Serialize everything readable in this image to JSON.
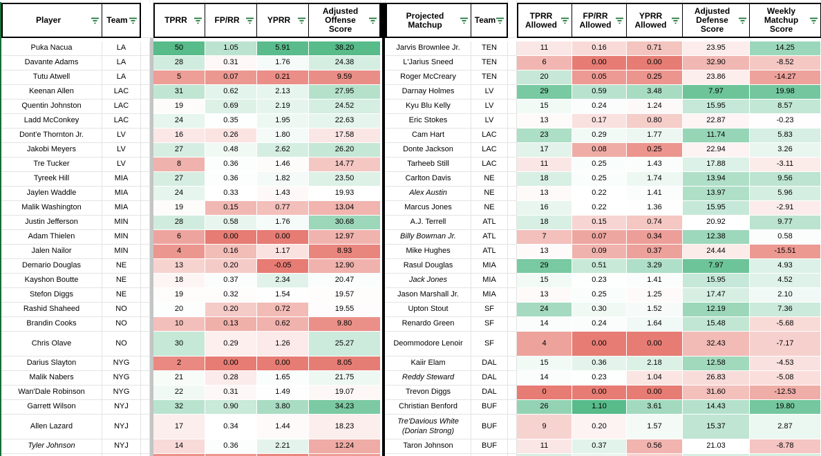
{
  "colors": {
    "scale_green": "#57bb8a",
    "scale_red": "#e67c73",
    "scale_white": "#ffffff",
    "header_border": "#000000",
    "gridline": "#e2e3e3",
    "freeze_bar": "#c3c4c4",
    "table_divider": "#000000",
    "filter_icon_green": "#137333",
    "sheet_edge_green": "#156f3b"
  },
  "left_headers": {
    "player": "Player",
    "team": "Team",
    "tprr": "TPRR",
    "fprr": "FP/RR",
    "yprr": "YPRR",
    "aos": "Adjusted Offense Score"
  },
  "right_headers": {
    "matchup": "Projected Matchup",
    "team": "Team",
    "tprr": "TPRR Allowed",
    "fprr": "FP/RR Allowed",
    "yprr": "YPRR Allowed",
    "ads": "Adjusted Defense Score",
    "wms": "Weekly Matchup Score"
  },
  "color_scales": {
    "l_tprr": {
      "min": 0,
      "mid": 19.5,
      "max": 50,
      "reverse": false
    },
    "l_fprr": {
      "min": 0,
      "mid": 0.33,
      "max": 2.1,
      "reverse": false
    },
    "l_yprr": {
      "min": 0,
      "mid": 1.5,
      "max": 6.0,
      "reverse": false
    },
    "l_aos": {
      "min": 8,
      "mid": 19.8,
      "max": 38.2,
      "reverse": false
    },
    "r_tprr": {
      "min": 0,
      "mid": 13.5,
      "max": 33,
      "reverse": false
    },
    "r_fprr": {
      "min": 0,
      "mid": 0.22,
      "max": 1.1,
      "reverse": false
    },
    "r_yprr": {
      "min": 0,
      "mid": 1.3,
      "max": 5.5,
      "reverse": false
    },
    "r_ads": {
      "min": 6,
      "mid": 21,
      "max": 43,
      "reverse": true
    },
    "r_wms": {
      "min": -20,
      "mid": 0,
      "max": 24,
      "reverse": false
    }
  },
  "rows": [
    {
      "tall": false,
      "left": {
        "player": "Puka Nacua",
        "team": "LA",
        "italic": false,
        "tprr": "50",
        "fprr": "1.05",
        "yprr": "5.91",
        "aos": "38.20"
      },
      "right": {
        "player": "Jarvis Brownlee Jr.",
        "team": "TEN",
        "italic": false,
        "tprr": "11",
        "fprr": "0.16",
        "yprr": "0.71",
        "ads": "23.95",
        "wms": "14.25"
      }
    },
    {
      "tall": false,
      "left": {
        "player": "Davante Adams",
        "team": "LA",
        "italic": false,
        "tprr": "28",
        "fprr": "0.31",
        "yprr": "1.76",
        "aos": "24.38"
      },
      "right": {
        "player": "L'Jarius Sneed",
        "team": "TEN",
        "italic": false,
        "tprr": "6",
        "fprr": "0.00",
        "yprr": "0.00",
        "ads": "32.90",
        "wms": "-8.52"
      }
    },
    {
      "tall": false,
      "left": {
        "player": "Tutu Atwell",
        "team": "LA",
        "italic": false,
        "tprr": "5",
        "fprr": "0.07",
        "yprr": "0.21",
        "aos": "9.59"
      },
      "right": {
        "player": "Roger McCreary",
        "team": "TEN",
        "italic": false,
        "tprr": "20",
        "fprr": "0.05",
        "yprr": "0.25",
        "ads": "23.86",
        "wms": "-14.27"
      }
    },
    {
      "tall": false,
      "left": {
        "player": "Keenan Allen",
        "team": "LAC",
        "italic": false,
        "tprr": "31",
        "fprr": "0.62",
        "yprr": "2.13",
        "aos": "27.95"
      },
      "right": {
        "player": "Darnay Holmes",
        "team": "LV",
        "italic": false,
        "tprr": "29",
        "fprr": "0.59",
        "yprr": "3.48",
        "ads": "7.97",
        "wms": "19.98"
      }
    },
    {
      "tall": false,
      "left": {
        "player": "Quentin Johnston",
        "team": "LAC",
        "italic": false,
        "tprr": "19",
        "fprr": "0.69",
        "yprr": "2.19",
        "aos": "24.52"
      },
      "right": {
        "player": "Kyu Blu Kelly",
        "team": "LV",
        "italic": false,
        "tprr": "15",
        "fprr": "0.24",
        "yprr": "1.24",
        "ads": "15.95",
        "wms": "8.57"
      }
    },
    {
      "tall": false,
      "left": {
        "player": "Ladd McConkey",
        "team": "LAC",
        "italic": false,
        "tprr": "24",
        "fprr": "0.35",
        "yprr": "1.95",
        "aos": "22.63"
      },
      "right": {
        "player": "Eric Stokes",
        "team": "LV",
        "italic": false,
        "tprr": "13",
        "fprr": "0.17",
        "yprr": "0.80",
        "ads": "22.87",
        "wms": "-0.23"
      }
    },
    {
      "tall": false,
      "left": {
        "player": "Dont'e Thornton Jr.",
        "team": "LV",
        "italic": false,
        "tprr": "16",
        "fprr": "0.26",
        "yprr": "1.80",
        "aos": "17.58"
      },
      "right": {
        "player": "Cam Hart",
        "team": "LAC",
        "italic": false,
        "tprr": "23",
        "fprr": "0.29",
        "yprr": "1.77",
        "ads": "11.74",
        "wms": "5.83"
      }
    },
    {
      "tall": false,
      "left": {
        "player": "Jakobi Meyers",
        "team": "LV",
        "italic": false,
        "tprr": "27",
        "fprr": "0.48",
        "yprr": "2.62",
        "aos": "26.20"
      },
      "right": {
        "player": "Donte Jackson",
        "team": "LAC",
        "italic": false,
        "tprr": "17",
        "fprr": "0.08",
        "yprr": "0.25",
        "ads": "22.94",
        "wms": "3.26"
      }
    },
    {
      "tall": false,
      "left": {
        "player": "Tre Tucker",
        "team": "LV",
        "italic": false,
        "tprr": "8",
        "fprr": "0.36",
        "yprr": "1.46",
        "aos": "14.77"
      },
      "right": {
        "player": "Tarheeb Still",
        "team": "LAC",
        "italic": false,
        "tprr": "11",
        "fprr": "0.25",
        "yprr": "1.43",
        "ads": "17.88",
        "wms": "-3.11"
      }
    },
    {
      "tall": false,
      "left": {
        "player": "Tyreek Hill",
        "team": "MIA",
        "italic": false,
        "tprr": "27",
        "fprr": "0.36",
        "yprr": "1.82",
        "aos": "23.50"
      },
      "right": {
        "player": "Carlton Davis",
        "team": "NE",
        "italic": false,
        "tprr": "18",
        "fprr": "0.25",
        "yprr": "1.74",
        "ads": "13.94",
        "wms": "9.56"
      }
    },
    {
      "tall": false,
      "left": {
        "player": "Jaylen Waddle",
        "team": "MIA",
        "italic": false,
        "tprr": "24",
        "fprr": "0.33",
        "yprr": "1.43",
        "aos": "19.93"
      },
      "right": {
        "player": "Alex Austin",
        "team": "NE",
        "italic": true,
        "tprr": "13",
        "fprr": "0.22",
        "yprr": "1.41",
        "ads": "13.97",
        "wms": "5.96"
      }
    },
    {
      "tall": false,
      "left": {
        "player": "Malik Washington",
        "team": "MIA",
        "italic": false,
        "tprr": "19",
        "fprr": "0.15",
        "yprr": "0.77",
        "aos": "13.04"
      },
      "right": {
        "player": "Marcus Jones",
        "team": "NE",
        "italic": false,
        "tprr": "16",
        "fprr": "0.22",
        "yprr": "1.36",
        "ads": "15.95",
        "wms": "-2.91"
      }
    },
    {
      "tall": false,
      "left": {
        "player": "Justin Jefferson",
        "team": "MIN",
        "italic": false,
        "tprr": "28",
        "fprr": "0.58",
        "yprr": "1.76",
        "aos": "30.68"
      },
      "right": {
        "player": "A.J. Terrell",
        "team": "ATL",
        "italic": false,
        "tprr": "18",
        "fprr": "0.15",
        "yprr": "0.74",
        "ads": "20.92",
        "wms": "9.77"
      }
    },
    {
      "tall": false,
      "left": {
        "player": "Adam Thielen",
        "team": "MIN",
        "italic": false,
        "tprr": "6",
        "fprr": "0.00",
        "yprr": "0.00",
        "aos": "12.97"
      },
      "right": {
        "player": "Billy Bowman Jr.",
        "team": "ATL",
        "italic": true,
        "tprr": "7",
        "fprr": "0.07",
        "yprr": "0.34",
        "ads": "12.38",
        "wms": "0.58"
      }
    },
    {
      "tall": false,
      "left": {
        "player": "Jalen Nailor",
        "team": "MIN",
        "italic": false,
        "tprr": "4",
        "fprr": "0.16",
        "yprr": "1.17",
        "aos": "8.93"
      },
      "right": {
        "player": "Mike Hughes",
        "team": "ATL",
        "italic": false,
        "tprr": "13",
        "fprr": "0.09",
        "yprr": "0.37",
        "ads": "24.44",
        "wms": "-15.51"
      }
    },
    {
      "tall": false,
      "left": {
        "player": "Demario Douglas",
        "team": "NE",
        "italic": false,
        "tprr": "13",
        "fprr": "0.20",
        "yprr": "-0.05",
        "aos": "12.90"
      },
      "right": {
        "player": "Rasul Douglas",
        "team": "MIA",
        "italic": false,
        "tprr": "29",
        "fprr": "0.51",
        "yprr": "3.29",
        "ads": "7.97",
        "wms": "4.93"
      }
    },
    {
      "tall": false,
      "left": {
        "player": "Kayshon Boutte",
        "team": "NE",
        "italic": false,
        "tprr": "18",
        "fprr": "0.37",
        "yprr": "2.34",
        "aos": "20.47"
      },
      "right": {
        "player": "Jack Jones",
        "team": "MIA",
        "italic": true,
        "tprr": "15",
        "fprr": "0.23",
        "yprr": "1.41",
        "ads": "15.95",
        "wms": "4.52"
      }
    },
    {
      "tall": false,
      "left": {
        "player": "Stefon Diggs",
        "team": "NE",
        "italic": false,
        "tprr": "19",
        "fprr": "0.32",
        "yprr": "1.54",
        "aos": "19.57"
      },
      "right": {
        "player": "Jason Marshall Jr.",
        "team": "MIA",
        "italic": false,
        "tprr": "13",
        "fprr": "0.25",
        "yprr": "1.25",
        "ads": "17.47",
        "wms": "2.10"
      }
    },
    {
      "tall": false,
      "left": {
        "player": "Rashid Shaheed",
        "team": "NO",
        "italic": false,
        "tprr": "20",
        "fprr": "0.20",
        "yprr": "0.72",
        "aos": "19.55"
      },
      "right": {
        "player": "Upton Stout",
        "team": "SF",
        "italic": false,
        "tprr": "24",
        "fprr": "0.30",
        "yprr": "1.52",
        "ads": "12.19",
        "wms": "7.36"
      }
    },
    {
      "tall": false,
      "left": {
        "player": "Brandin Cooks",
        "team": "NO",
        "italic": false,
        "tprr": "10",
        "fprr": "0.13",
        "yprr": "0.62",
        "aos": "9.80"
      },
      "right": {
        "player": "Renardo Green",
        "team": "SF",
        "italic": false,
        "tprr": "14",
        "fprr": "0.24",
        "yprr": "1.64",
        "ads": "15.48",
        "wms": "-5.68"
      }
    },
    {
      "tall": true,
      "left": {
        "player": "Chris Olave",
        "team": "NO",
        "italic": false,
        "tprr": "30",
        "fprr": "0.29",
        "yprr": "1.26",
        "aos": "25.27"
      },
      "right": {
        "player": "Deommodore Lenoir",
        "team": "SF",
        "italic": false,
        "tprr": "4",
        "fprr": "0.00",
        "yprr": "0.00",
        "ads": "32.43",
        "wms": "-7.17"
      }
    },
    {
      "tall": false,
      "left": {
        "player": "Darius Slayton",
        "team": "NYG",
        "italic": false,
        "tprr": "2",
        "fprr": "0.00",
        "yprr": "0.00",
        "aos": "8.05"
      },
      "right": {
        "player": "Kaiir Elam",
        "team": "DAL",
        "italic": false,
        "tprr": "15",
        "fprr": "0.36",
        "yprr": "2.18",
        "ads": "12.58",
        "wms": "-4.53"
      }
    },
    {
      "tall": false,
      "left": {
        "player": "Malik Nabers",
        "team": "NYG",
        "italic": false,
        "tprr": "21",
        "fprr": "0.28",
        "yprr": "1.65",
        "aos": "21.75"
      },
      "right": {
        "player": "Reddy Steward",
        "team": "DAL",
        "italic": true,
        "tprr": "14",
        "fprr": "0.23",
        "yprr": "1.04",
        "ads": "26.83",
        "wms": "-5.08"
      }
    },
    {
      "tall": false,
      "left": {
        "player": "Wan'Dale Robinson",
        "team": "NYG",
        "italic": false,
        "tprr": "22",
        "fprr": "0.31",
        "yprr": "1.49",
        "aos": "19.07"
      },
      "right": {
        "player": "Trevon Diggs",
        "team": "DAL",
        "italic": false,
        "tprr": "0",
        "fprr": "0.00",
        "yprr": "0.00",
        "ads": "31.60",
        "wms": "-12.53"
      }
    },
    {
      "tall": false,
      "left": {
        "player": "Garrett Wilson",
        "team": "NYJ",
        "italic": false,
        "tprr": "32",
        "fprr": "0.90",
        "yprr": "3.80",
        "aos": "34.23"
      },
      "right": {
        "player": "Christian Benford",
        "team": "BUF",
        "italic": false,
        "tprr": "26",
        "fprr": "1.10",
        "yprr": "3.61",
        "ads": "14.43",
        "wms": "19.80"
      }
    },
    {
      "tall": true,
      "left": {
        "player": "Allen Lazard",
        "team": "NYJ",
        "italic": false,
        "tprr": "17",
        "fprr": "0.34",
        "yprr": "1.44",
        "aos": "18.23"
      },
      "right": {
        "player": "Tre'Davious White (Dorian Strong)",
        "team": "BUF",
        "italic": true,
        "tprr": "9",
        "fprr": "0.20",
        "yprr": "1.57",
        "ads": "15.37",
        "wms": "2.87"
      }
    },
    {
      "tall": false,
      "left": {
        "player": "Tyler Johnson",
        "team": "NYJ",
        "italic": true,
        "tprr": "14",
        "fprr": "0.36",
        "yprr": "2.21",
        "aos": "12.24"
      },
      "right": {
        "player": "Taron Johnson",
        "team": "BUF",
        "italic": false,
        "tprr": "11",
        "fprr": "0.37",
        "yprr": "0.56",
        "ads": "21.03",
        "wms": "-8.78"
      }
    }
  ],
  "cutoff_row": {
    "left": [
      "#eb9087",
      "#ec968e",
      "#e9857c",
      "#ee9c94"
    ],
    "right": [
      "#d8efe3",
      "#e8f5ee",
      "#f7d1cd",
      "#d8efe3",
      "#d4edde"
    ]
  }
}
